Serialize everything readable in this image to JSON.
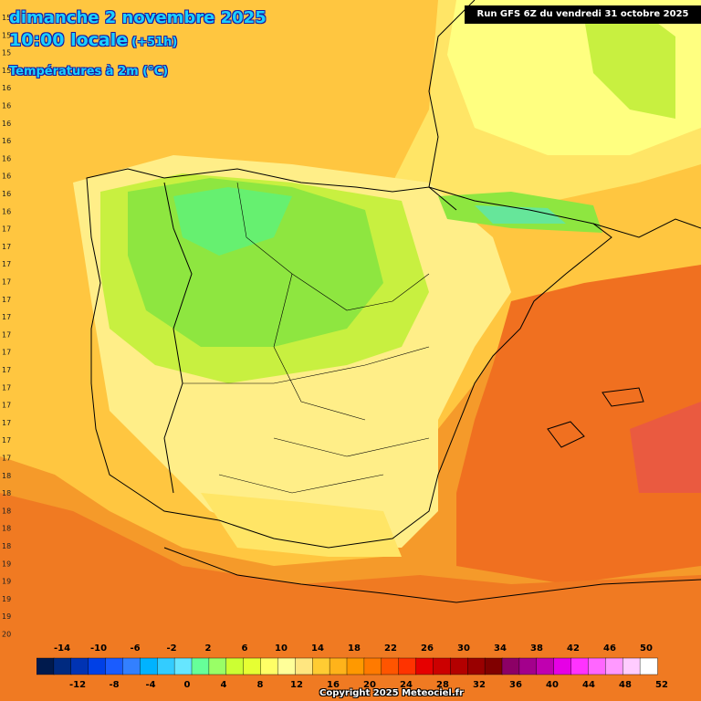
{
  "header": {
    "date": "dimanche 2 novembre 2025",
    "time": "10:00 locale",
    "lead": "(+51h)",
    "variable": "Températures à 2m (°C)"
  },
  "run_label": "Run GFS 6Z du vendredi 31 octobre 2025",
  "copyright": "Copyright 2025 Meteociel.fr",
  "grid_row_labels": [
    "15",
    "15",
    "15",
    "15",
    "16",
    "16",
    "16",
    "16",
    "16",
    "16",
    "16",
    "16",
    "17",
    "17",
    "17",
    "17",
    "17",
    "17",
    "17",
    "17",
    "17",
    "17",
    "17",
    "17",
    "17",
    "17",
    "18",
    "18",
    "18",
    "18",
    "18",
    "19",
    "19",
    "19",
    "19",
    "20",
    "20",
    "20",
    "21",
    "21"
  ],
  "legend": {
    "upper_labels": [
      "-14",
      "-10",
      "-6",
      "-2",
      "2",
      "6",
      "10",
      "14",
      "18",
      "22",
      "26",
      "30",
      "34",
      "38",
      "42",
      "46",
      "50"
    ],
    "lower_labels": [
      "-12",
      "-8",
      "-4",
      "0",
      "4",
      "8",
      "12",
      "16",
      "20",
      "24",
      "28",
      "32",
      "36",
      "40",
      "44",
      "48",
      "52"
    ],
    "colors": [
      "#001a4d",
      "#002a80",
      "#0033b3",
      "#0040e6",
      "#1a5cff",
      "#3380ff",
      "#00b3ff",
      "#33ccff",
      "#66e6ff",
      "#66ff99",
      "#99ff66",
      "#ccff33",
      "#e6ff33",
      "#ffff66",
      "#ffff99",
      "#ffe680",
      "#ffcc33",
      "#ffb31a",
      "#ff9900",
      "#ff7a00",
      "#ff5500",
      "#ff3300",
      "#e60000",
      "#cc0000",
      "#b30000",
      "#990000",
      "#800000",
      "#8c0066",
      "#a3008c",
      "#c000b0",
      "#e600e6",
      "#ff33ff",
      "#ff66ff",
      "#ff99ff",
      "#ffccff",
      "#ffffff"
    ]
  },
  "temperature_zones": {
    "cold_core": "6-9",
    "cool": "10-13",
    "mild": "14-17",
    "warm": "18-22"
  }
}
